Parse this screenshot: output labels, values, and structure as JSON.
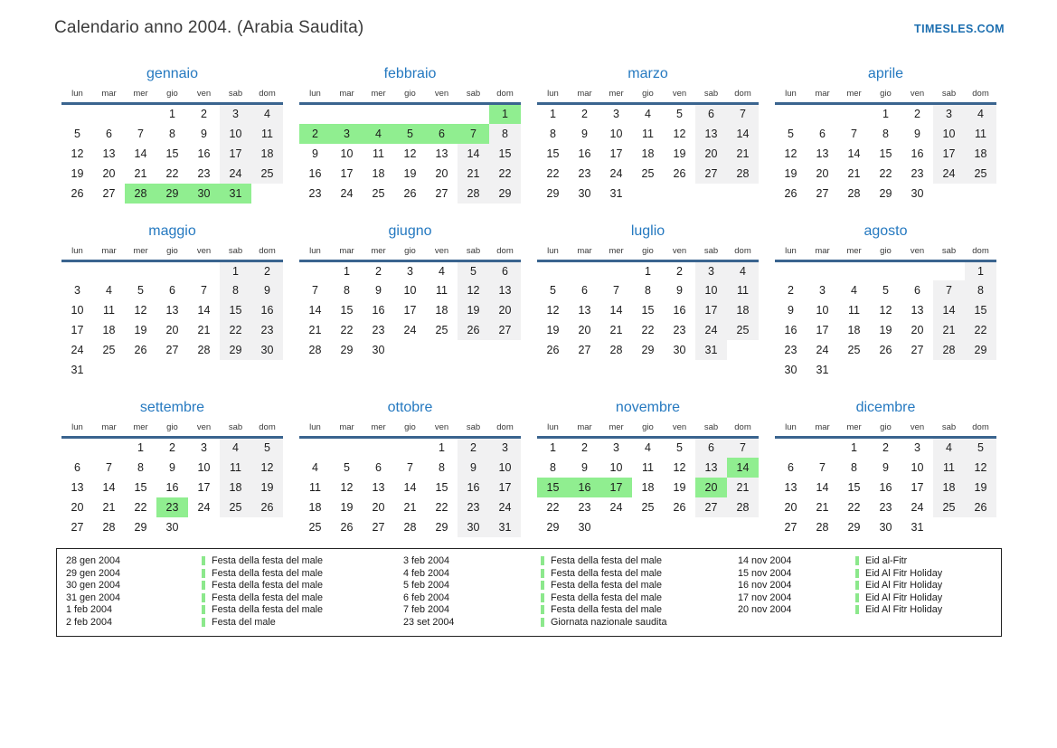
{
  "page": {
    "title": "Calendario anno 2004. (Arabia Saudita)",
    "site": "TIMESLES.COM"
  },
  "colors": {
    "accent_blue": "#2579c0",
    "link_blue": "#1d6fb0",
    "header_rule_blue": "#3a648f",
    "holiday_green": "#90ee90",
    "weekend_gray": "#f1f1f2"
  },
  "weekdays": [
    "lun",
    "mar",
    "mer",
    "gio",
    "ven",
    "sab",
    "dom"
  ],
  "months": [
    {
      "name": "gennaio",
      "weeks": [
        [
          null,
          null,
          null,
          1,
          2,
          3,
          4
        ],
        [
          5,
          6,
          7,
          8,
          9,
          10,
          11
        ],
        [
          12,
          13,
          14,
          15,
          16,
          17,
          18
        ],
        [
          19,
          20,
          21,
          22,
          23,
          24,
          25
        ],
        [
          26,
          27,
          28,
          29,
          30,
          31,
          null
        ]
      ],
      "green": [
        28,
        29,
        30,
        31
      ]
    },
    {
      "name": "febbraio",
      "weeks": [
        [
          null,
          null,
          null,
          null,
          null,
          null,
          1
        ],
        [
          2,
          3,
          4,
          5,
          6,
          7,
          8
        ],
        [
          9,
          10,
          11,
          12,
          13,
          14,
          15
        ],
        [
          16,
          17,
          18,
          19,
          20,
          21,
          22
        ],
        [
          23,
          24,
          25,
          26,
          27,
          28,
          29
        ]
      ],
      "green": [
        1,
        2,
        3,
        4,
        5,
        6,
        7
      ]
    },
    {
      "name": "marzo",
      "weeks": [
        [
          1,
          2,
          3,
          4,
          5,
          6,
          7
        ],
        [
          8,
          9,
          10,
          11,
          12,
          13,
          14
        ],
        [
          15,
          16,
          17,
          18,
          19,
          20,
          21
        ],
        [
          22,
          23,
          24,
          25,
          26,
          27,
          28
        ],
        [
          29,
          30,
          31,
          null,
          null,
          null,
          null
        ]
      ],
      "green": []
    },
    {
      "name": "aprile",
      "weeks": [
        [
          null,
          null,
          null,
          1,
          2,
          3,
          4
        ],
        [
          5,
          6,
          7,
          8,
          9,
          10,
          11
        ],
        [
          12,
          13,
          14,
          15,
          16,
          17,
          18
        ],
        [
          19,
          20,
          21,
          22,
          23,
          24,
          25
        ],
        [
          26,
          27,
          28,
          29,
          30,
          null,
          null
        ]
      ],
      "green": []
    },
    {
      "name": "maggio",
      "weeks": [
        [
          null,
          null,
          null,
          null,
          null,
          1,
          2
        ],
        [
          3,
          4,
          5,
          6,
          7,
          8,
          9
        ],
        [
          10,
          11,
          12,
          13,
          14,
          15,
          16
        ],
        [
          17,
          18,
          19,
          20,
          21,
          22,
          23
        ],
        [
          24,
          25,
          26,
          27,
          28,
          29,
          30
        ],
        [
          31,
          null,
          null,
          null,
          null,
          null,
          null
        ]
      ],
      "green": []
    },
    {
      "name": "giugno",
      "weeks": [
        [
          null,
          1,
          2,
          3,
          4,
          5,
          6
        ],
        [
          7,
          8,
          9,
          10,
          11,
          12,
          13
        ],
        [
          14,
          15,
          16,
          17,
          18,
          19,
          20
        ],
        [
          21,
          22,
          23,
          24,
          25,
          26,
          27
        ],
        [
          28,
          29,
          30,
          null,
          null,
          null,
          null
        ]
      ],
      "green": []
    },
    {
      "name": "luglio",
      "weeks": [
        [
          null,
          null,
          null,
          1,
          2,
          3,
          4
        ],
        [
          5,
          6,
          7,
          8,
          9,
          10,
          11
        ],
        [
          12,
          13,
          14,
          15,
          16,
          17,
          18
        ],
        [
          19,
          20,
          21,
          22,
          23,
          24,
          25
        ],
        [
          26,
          27,
          28,
          29,
          30,
          31,
          null
        ]
      ],
      "green": []
    },
    {
      "name": "agosto",
      "weeks": [
        [
          null,
          null,
          null,
          null,
          null,
          null,
          1
        ],
        [
          2,
          3,
          4,
          5,
          6,
          7,
          8
        ],
        [
          9,
          10,
          11,
          12,
          13,
          14,
          15
        ],
        [
          16,
          17,
          18,
          19,
          20,
          21,
          22
        ],
        [
          23,
          24,
          25,
          26,
          27,
          28,
          29
        ],
        [
          30,
          31,
          null,
          null,
          null,
          null,
          null
        ]
      ],
      "green": []
    },
    {
      "name": "settembre",
      "weeks": [
        [
          null,
          null,
          1,
          2,
          3,
          4,
          5
        ],
        [
          6,
          7,
          8,
          9,
          10,
          11,
          12
        ],
        [
          13,
          14,
          15,
          16,
          17,
          18,
          19
        ],
        [
          20,
          21,
          22,
          23,
          24,
          25,
          26
        ],
        [
          27,
          28,
          29,
          30,
          null,
          null,
          null
        ]
      ],
      "green": [
        23
      ]
    },
    {
      "name": "ottobre",
      "weeks": [
        [
          null,
          null,
          null,
          null,
          1,
          2,
          3
        ],
        [
          4,
          5,
          6,
          7,
          8,
          9,
          10
        ],
        [
          11,
          12,
          13,
          14,
          15,
          16,
          17
        ],
        [
          18,
          19,
          20,
          21,
          22,
          23,
          24
        ],
        [
          25,
          26,
          27,
          28,
          29,
          30,
          31
        ]
      ],
      "green": []
    },
    {
      "name": "novembre",
      "weeks": [
        [
          1,
          2,
          3,
          4,
          5,
          6,
          7
        ],
        [
          8,
          9,
          10,
          11,
          12,
          13,
          14
        ],
        [
          15,
          16,
          17,
          18,
          19,
          20,
          21
        ],
        [
          22,
          23,
          24,
          25,
          26,
          27,
          28
        ],
        [
          29,
          30,
          null,
          null,
          null,
          null,
          null
        ]
      ],
      "green": [
        14,
        15,
        16,
        17,
        20
      ]
    },
    {
      "name": "dicembre",
      "weeks": [
        [
          null,
          null,
          1,
          2,
          3,
          4,
          5
        ],
        [
          6,
          7,
          8,
          9,
          10,
          11,
          12
        ],
        [
          13,
          14,
          15,
          16,
          17,
          18,
          19
        ],
        [
          20,
          21,
          22,
          23,
          24,
          25,
          26
        ],
        [
          27,
          28,
          29,
          30,
          31,
          null,
          null
        ]
      ],
      "green": []
    }
  ],
  "legend": {
    "columns": [
      {
        "entries": [
          {
            "date": "28 gen 2004",
            "name": "Festa della festa del male"
          },
          {
            "date": "29 gen 2004",
            "name": "Festa della festa del male"
          },
          {
            "date": "30 gen 2004",
            "name": "Festa della festa del male"
          },
          {
            "date": "31 gen 2004",
            "name": "Festa della festa del male"
          },
          {
            "date": "1 feb 2004",
            "name": "Festa della festa del male"
          },
          {
            "date": "2 feb 2004",
            "name": "Festa del male"
          }
        ]
      },
      {
        "entries": [
          {
            "date": "3 feb 2004",
            "name": "Festa della festa del male"
          },
          {
            "date": "4 feb 2004",
            "name": "Festa della festa del male"
          },
          {
            "date": "5 feb 2004",
            "name": "Festa della festa del male"
          },
          {
            "date": "6 feb 2004",
            "name": "Festa della festa del male"
          },
          {
            "date": "7 feb 2004",
            "name": "Festa della festa del male"
          },
          {
            "date": "23 set 2004",
            "name": "Giornata nazionale saudita"
          }
        ]
      },
      {
        "entries": [
          {
            "date": "14 nov 2004",
            "name": "Eid al-Fitr"
          },
          {
            "date": "15 nov 2004",
            "name": "Eid Al Fitr Holiday"
          },
          {
            "date": "16 nov 2004",
            "name": "Eid Al Fitr Holiday"
          },
          {
            "date": "17 nov 2004",
            "name": "Eid Al Fitr Holiday"
          },
          {
            "date": "20 nov 2004",
            "name": "Eid Al Fitr Holiday"
          }
        ]
      }
    ]
  }
}
